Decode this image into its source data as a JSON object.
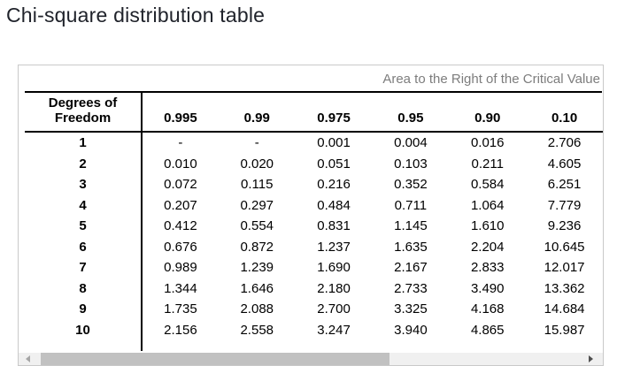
{
  "page": {
    "title": "Chi-square distribution table"
  },
  "table": {
    "caption": "Area to the Right of the Critical Value",
    "corner_header": "Degrees of\nFreedom",
    "column_headers": [
      "0.995",
      "0.99",
      "0.975",
      "0.95",
      "0.90",
      "0.10"
    ],
    "rows": [
      {
        "df": "1",
        "values": [
          "-",
          "-",
          "0.001",
          "0.004",
          "0.016",
          "2.706"
        ]
      },
      {
        "df": "2",
        "values": [
          "0.010",
          "0.020",
          "0.051",
          "0.103",
          "0.211",
          "4.605"
        ]
      },
      {
        "df": "3",
        "values": [
          "0.072",
          "0.115",
          "0.216",
          "0.352",
          "0.584",
          "6.251"
        ]
      },
      {
        "df": "4",
        "values": [
          "0.207",
          "0.297",
          "0.484",
          "0.711",
          "1.064",
          "7.779"
        ]
      },
      {
        "df": "5",
        "values": [
          "0.412",
          "0.554",
          "0.831",
          "1.145",
          "1.610",
          "9.236"
        ]
      },
      {
        "df": "6",
        "values": [
          "0.676",
          "0.872",
          "1.237",
          "1.635",
          "2.204",
          "10.645"
        ]
      },
      {
        "df": "7",
        "values": [
          "0.989",
          "1.239",
          "1.690",
          "2.167",
          "2.833",
          "12.017"
        ]
      },
      {
        "df": "8",
        "values": [
          "1.344",
          "1.646",
          "2.180",
          "2.733",
          "3.490",
          "13.362"
        ]
      },
      {
        "df": "9",
        "values": [
          "1.735",
          "2.088",
          "2.700",
          "3.325",
          "4.168",
          "14.684"
        ]
      },
      {
        "df": "10",
        "values": [
          "2.156",
          "2.558",
          "3.247",
          "3.940",
          "4.865",
          "15.987"
        ]
      }
    ]
  },
  "scrollbar": {
    "orientation": "horizontal",
    "left_arrow_icon": "scroll-left-icon",
    "right_arrow_icon": "scroll-right-icon"
  },
  "colors": {
    "title_text": "#20232b",
    "caption_text": "#7d7d7d",
    "table_lines": "#000000",
    "panel_border": "#c9c9c9",
    "scrollbar_track": "#f0f0f0",
    "scrollbar_thumb": "#c1c1c1"
  }
}
